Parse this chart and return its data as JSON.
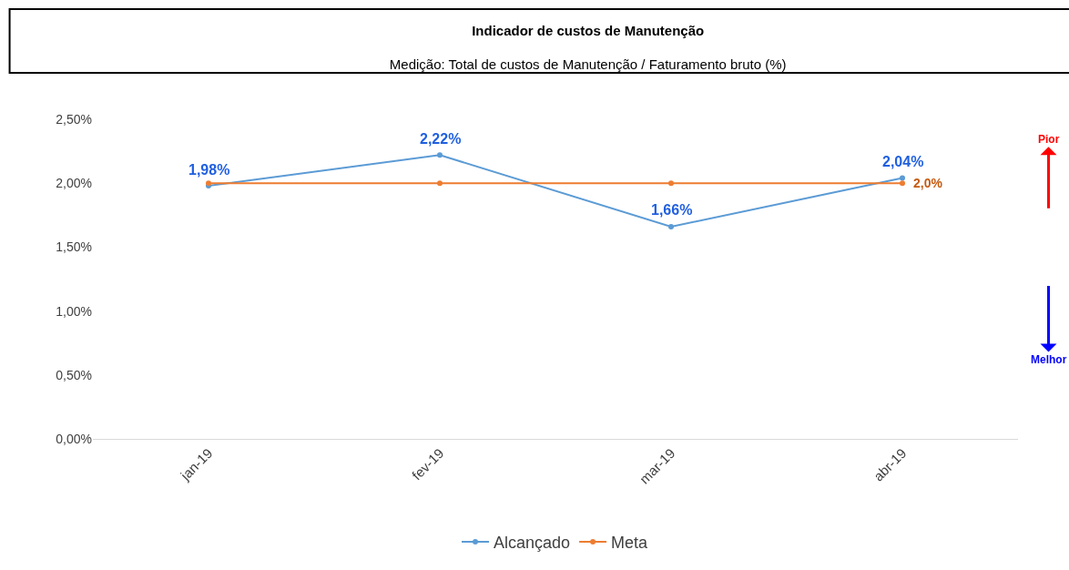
{
  "chart_data": {
    "type": "line",
    "title": "Indicador de custos de Manutenção",
    "subtitle": "Medição: Total de custos de Manutenção / Faturamento bruto (%)",
    "categories": [
      "jan-19",
      "fev-19",
      "mar-19",
      "abr-19"
    ],
    "series": [
      {
        "name": "Alcançado",
        "color": "#5b9bd5",
        "values": [
          1.98,
          2.22,
          1.66,
          2.04
        ],
        "value_labels": [
          "1,98%",
          "2,22%",
          "1,66%",
          "2,04%"
        ]
      },
      {
        "name": "Meta",
        "color": "#ed7d31",
        "values": [
          2.0,
          2.0,
          2.0,
          2.0
        ],
        "value_labels": [
          null,
          null,
          null,
          "2,0%"
        ]
      }
    ],
    "ylim": [
      0,
      2.5
    ],
    "yticks": [
      {
        "value": 0,
        "label": "0,00%"
      },
      {
        "value": 0.5,
        "label": "0,50%"
      },
      {
        "value": 1.0,
        "label": "1,00%"
      },
      {
        "value": 1.5,
        "label": "1,50%"
      },
      {
        "value": 2.0,
        "label": "2,00%"
      },
      {
        "value": 2.5,
        "label": "2,50%"
      }
    ],
    "annotations": [
      "Pior",
      "Melhor"
    ],
    "legend": "bottom",
    "marker": "circle",
    "line_style": "solid"
  }
}
